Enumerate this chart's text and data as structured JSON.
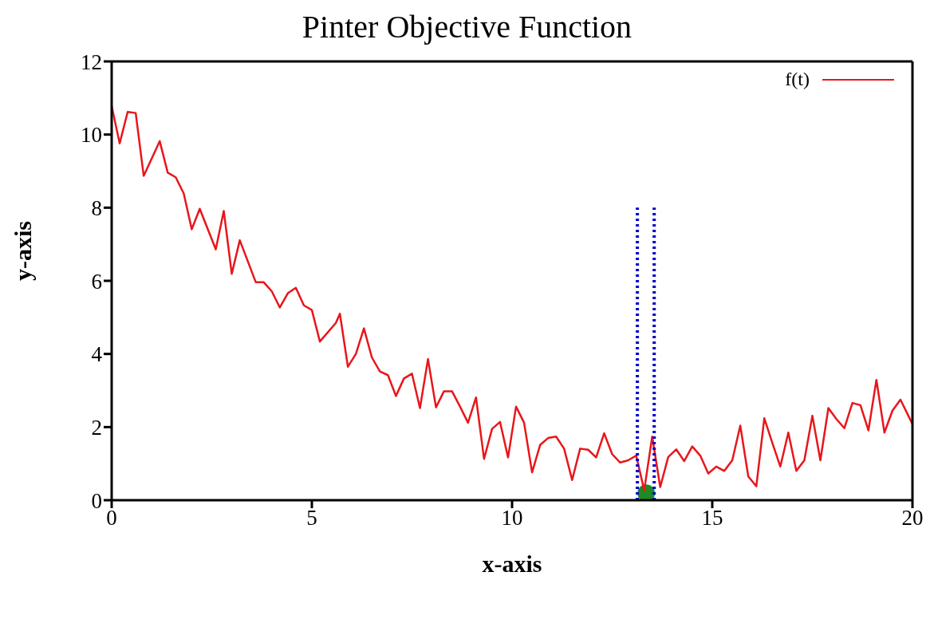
{
  "chart_data": {
    "type": "line",
    "title": "Pinter Objective Function",
    "xlabel": "x-axis",
    "ylabel": "y-axis",
    "xlim": [
      0,
      20
    ],
    "ylim": [
      0,
      12
    ],
    "xticks": [
      0,
      5,
      10,
      15,
      20
    ],
    "yticks": [
      0,
      2,
      4,
      6,
      8,
      10,
      12
    ],
    "legend": "top right",
    "marker": "none",
    "line_style": "solid",
    "series": [
      {
        "name": "f(t)",
        "color": "#e8161b",
        "x": [
          0,
          0.2,
          0.4,
          0.6,
          0.8,
          1.2,
          1.4,
          1.6,
          1.8,
          2.0,
          2.2,
          2.6,
          2.8,
          3.0,
          3.2,
          3.6,
          3.8,
          4.0,
          4.2,
          4.4,
          4.6,
          4.8,
          5.0,
          5.2,
          5.6,
          5.7,
          5.9,
          6.1,
          6.3,
          6.5,
          6.7,
          6.9,
          7.1,
          7.3,
          7.5,
          7.7,
          7.9,
          8.1,
          8.3,
          8.5,
          8.7,
          8.9,
          9.1,
          9.3,
          9.5,
          9.7,
          9.9,
          10.1,
          10.3,
          10.5,
          10.7,
          10.9,
          11.1,
          11.3,
          11.5,
          11.7,
          11.9,
          12.1,
          12.3,
          12.5,
          12.7,
          12.9,
          13.1,
          13.3,
          13.5,
          13.7,
          13.9,
          14.1,
          14.3,
          14.5,
          14.7,
          14.9,
          15.1,
          15.3,
          15.5,
          15.7,
          15.9,
          16.1,
          16.3,
          16.5,
          16.7,
          16.9,
          17.1,
          17.3,
          17.5,
          17.7,
          17.9,
          18.1,
          18.3,
          18.5,
          18.7,
          18.9,
          19.1,
          19.3,
          19.5,
          19.7,
          20
        ],
        "values": [
          10.78,
          9.76,
          10.62,
          10.59,
          8.87,
          9.82,
          8.96,
          8.83,
          8.39,
          7.41,
          7.97,
          6.86,
          7.91,
          6.19,
          7.11,
          5.96,
          5.96,
          5.71,
          5.27,
          5.66,
          5.81,
          5.33,
          5.2,
          4.34,
          4.85,
          5.1,
          3.65,
          4.0,
          4.7,
          3.9,
          3.52,
          3.42,
          2.85,
          3.33,
          3.46,
          2.52,
          3.86,
          2.54,
          2.98,
          2.98,
          2.56,
          2.12,
          2.81,
          1.13,
          1.95,
          2.14,
          1.17,
          2.56,
          2.12,
          0.76,
          1.51,
          1.7,
          1.74,
          1.41,
          0.55,
          1.41,
          1.38,
          1.17,
          1.83,
          1.26,
          1.03,
          1.09,
          1.22,
          0.27,
          1.74,
          0.36,
          1.18,
          1.39,
          1.07,
          1.47,
          1.22,
          0.73,
          0.92,
          0.8,
          1.09,
          2.04,
          0.65,
          0.38,
          2.24,
          1.57,
          0.92,
          1.85,
          0.8,
          1.09,
          2.31,
          1.09,
          2.52,
          2.22,
          1.97,
          2.66,
          2.6,
          1.91,
          3.29,
          1.85,
          2.45,
          2.75,
          2.08
        ]
      },
      {
        "type": "line",
        "color": "#0000d0",
        "line_style": "dotted",
        "x": [
          13.13,
          13.13
        ],
        "values": [
          0,
          8
        ]
      },
      {
        "type": "line",
        "color": "#0000d0",
        "line_style": "dotted",
        "x": [
          13.55,
          13.55
        ],
        "values": [
          0,
          8
        ]
      },
      {
        "type": "scatter",
        "color": "#1f8a22",
        "marker": "circle",
        "x": [
          13.35
        ],
        "values": [
          0.19
        ]
      }
    ]
  }
}
